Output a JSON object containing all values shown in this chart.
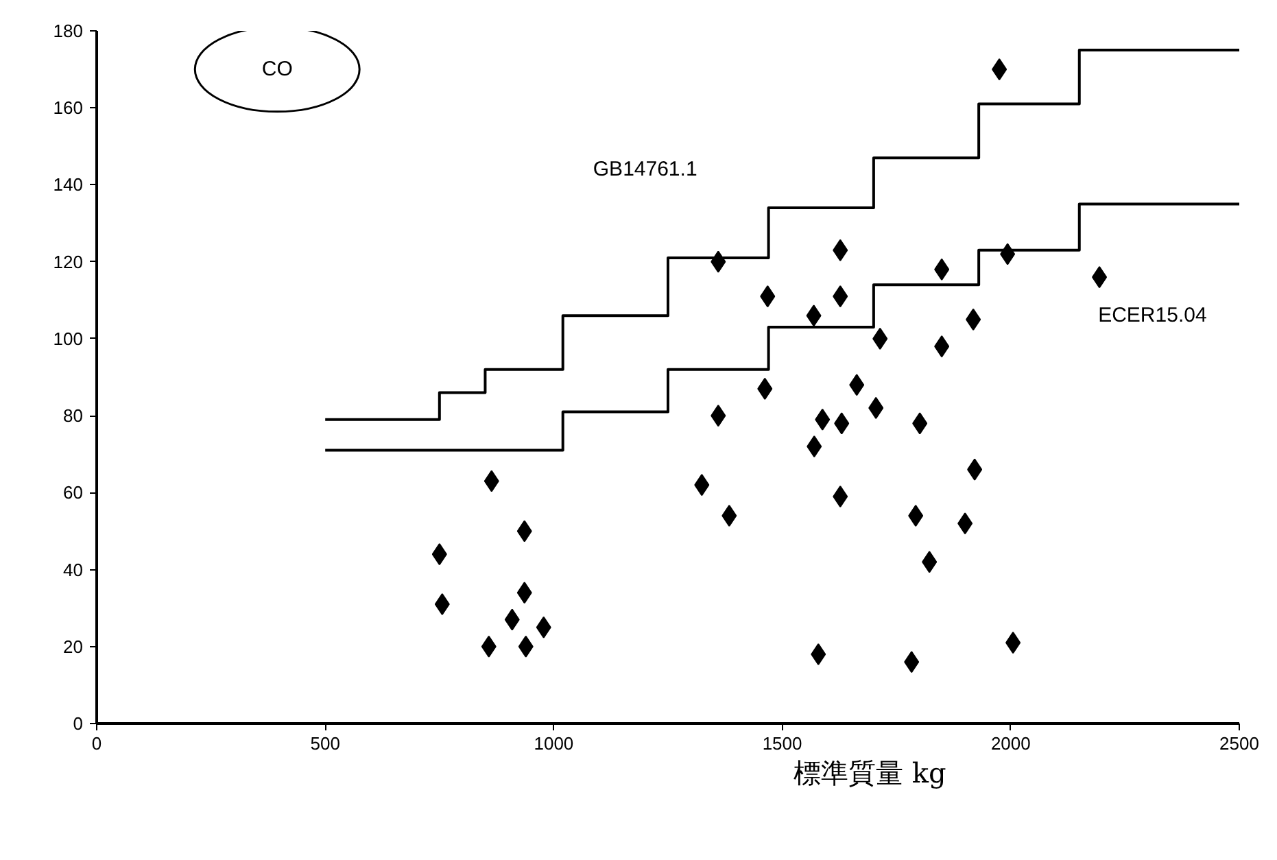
{
  "chart_data": {
    "type": "scatter",
    "xlabel": "標準質量 kg",
    "xlim": [
      0,
      2500
    ],
    "xticks": [
      0,
      500,
      1000,
      1500,
      2000,
      2500
    ],
    "ylim": [
      0,
      180
    ],
    "yticks": [
      0,
      20,
      40,
      60,
      80,
      100,
      120,
      140,
      160,
      180
    ],
    "grid": false,
    "annotations": [
      "CO",
      "GB14761.1",
      "ECER15.04"
    ],
    "series": [
      {
        "type": "step",
        "color": "#000000",
        "x": [
          500,
          750,
          850,
          1020,
          1250,
          1470,
          1700,
          1930,
          2150,
          2500
        ],
        "values": [
          79,
          86,
          92,
          106,
          121,
          134,
          147,
          161,
          175,
          175
        ]
      },
      {
        "type": "step",
        "color": "#000000",
        "x": [
          500,
          1020,
          1250,
          1470,
          1700,
          1930,
          2150,
          2500
        ],
        "values": [
          71,
          81,
          92,
          103,
          114,
          123,
          135,
          135
        ]
      },
      {
        "type": "scatter",
        "marker": "diamond",
        "color": "#000000",
        "x": [
          864,
          936,
          750,
          756,
          936,
          909,
          978,
          858,
          939,
          1324,
          1627,
          1849,
          1360,
          1468,
          1627,
          1569,
          1714,
          1918,
          1849,
          1462,
          1663,
          1360,
          1588,
          1630,
          1705,
          1801,
          1570,
          1384,
          1627,
          1792,
          1900,
          1921,
          1822,
          1579,
          1783,
          1975,
          1993,
          2194,
          2005
        ],
        "values": [
          63,
          50,
          44,
          31,
          34,
          27,
          25,
          20,
          20,
          62,
          123,
          118,
          120,
          111,
          111,
          106,
          100,
          105,
          98,
          87,
          88,
          80,
          79,
          78,
          82,
          78,
          72,
          54,
          59,
          54,
          52,
          66,
          42,
          18,
          16,
          170,
          122,
          116,
          21
        ]
      }
    ]
  }
}
